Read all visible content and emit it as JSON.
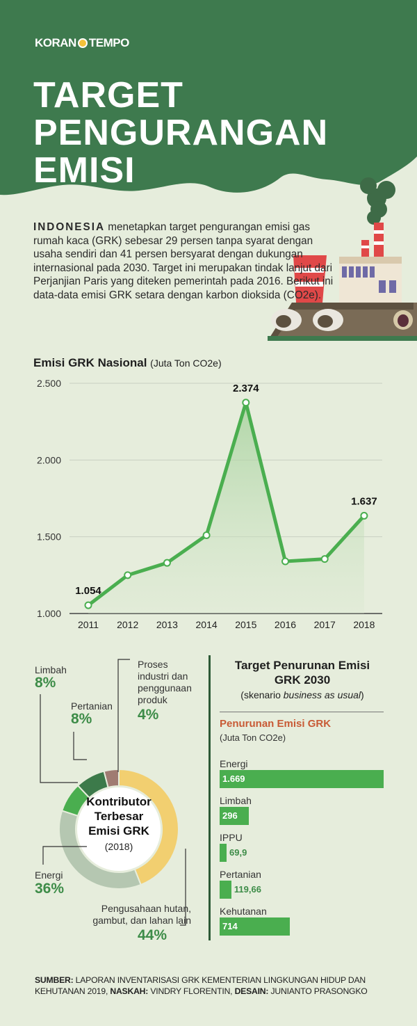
{
  "brand": {
    "left": "KORAN",
    "right": "TEMPO"
  },
  "title_lines": [
    "TARGET",
    "PENGURANGAN",
    "EMISI"
  ],
  "intro": {
    "lead": "INDONESIA",
    "text": " menetapkan target pengurangan emisi gas rumah kaca (GRK) sebesar 29 persen tanpa syarat dengan usaha sendiri dan 41 persen bersyarat dengan dukungan internasional pada 2030. Target ini merupakan tindak lanjut dari Perjanjian Paris yang diteken pemerintah pada 2016. Berikut ini data-data emisi GRK setara dengan karbon dioksida (CO2e)."
  },
  "colors": {
    "header": "#3e7a4e",
    "line": "#4aae4f",
    "accent": "#3d8c48",
    "pie_forest": "#f2cf70",
    "pie_energy": "#b5c7b1",
    "pie_waste": "#4aae4f",
    "pie_agri": "#3c7a4a",
    "pie_ippu": "#a07b72",
    "orange": "#c85a35"
  },
  "icons": [
    "factory-illustration"
  ],
  "line_chart": {
    "title": "Emisi GRK Nasional",
    "unit": "(Juta Ton CO2e)",
    "chart_data": {
      "type": "line",
      "x": [
        "2011",
        "2012",
        "2013",
        "2014",
        "2015",
        "2016",
        "2017",
        "2018"
      ],
      "y": [
        1054,
        1250,
        1330,
        1510,
        2374,
        1340,
        1355,
        1637
      ],
      "ylim": [
        1000,
        2500
      ],
      "yticks": [
        "1.000",
        "1.500",
        "2.000",
        "2.500"
      ],
      "point_labels": [
        {
          "index": 0,
          "text": "1.054"
        },
        {
          "index": 4,
          "text": "2.374"
        },
        {
          "index": 7,
          "text": "1.637"
        }
      ],
      "grid": true
    }
  },
  "donut": {
    "center_lines": [
      "Kontributor",
      "Terbesar",
      "Emisi GRK"
    ],
    "center_year": "(2018)",
    "chart_data": {
      "type": "pie",
      "slices": [
        {
          "label": "Pengusahaan hutan, gambut, dan lahan lain",
          "pct": "44%",
          "value": 44
        },
        {
          "label": "Energi",
          "pct": "36%",
          "value": 36
        },
        {
          "label": "Limbah",
          "pct": "8%",
          "value": 8
        },
        {
          "label": "Pertanian",
          "pct": "8%",
          "value": 8
        },
        {
          "label": "Proses industri dan penggunaan produk",
          "pct": "4%",
          "value": 4
        }
      ]
    },
    "labels": {
      "limbah": "Limbah",
      "limbah_pct": "8%",
      "pertanian": "Pertanian",
      "pertanian_pct": "8%",
      "proses": [
        "Proses",
        "industri dan",
        "penggunaan",
        "produk"
      ],
      "proses_pct": "4%",
      "energi": "Energi",
      "energi_pct": "36%",
      "hutan": [
        "Pengusahaan hutan,",
        "gambut, dan lahan lain"
      ],
      "hutan_pct": "44%"
    }
  },
  "target": {
    "title_lines": [
      "Target Penurunan Emisi",
      "GRK 2030"
    ],
    "sub_prefix": "(skenario ",
    "sub_italic": "business as usual",
    "sub_suffix": ")",
    "bar_heading": "Penurunan Emisi GRK",
    "bar_unit": "(Juta Ton CO2e)",
    "chart_data": {
      "type": "bar",
      "categories": [
        "Energi",
        "Limbah",
        "IPPU",
        "Pertanian",
        "Kehutanan"
      ],
      "values": [
        1669,
        296,
        69.9,
        119.66,
        714
      ],
      "value_labels": [
        "1.669",
        "296",
        "69,9",
        "119,66",
        "714"
      ]
    }
  },
  "source": {
    "k1": "SUMBER:",
    "v1": " LAPORAN INVENTARISASI GRK KEMENTERIAN LINGKUNGAN HIDUP DAN KEHUTANAN 2019, ",
    "k2": "NASKAH:",
    "v2": " VINDRY FLORENTIN, ",
    "k3": "DESAIN:",
    "v3": " JUNIANTO PRASONGKO"
  }
}
